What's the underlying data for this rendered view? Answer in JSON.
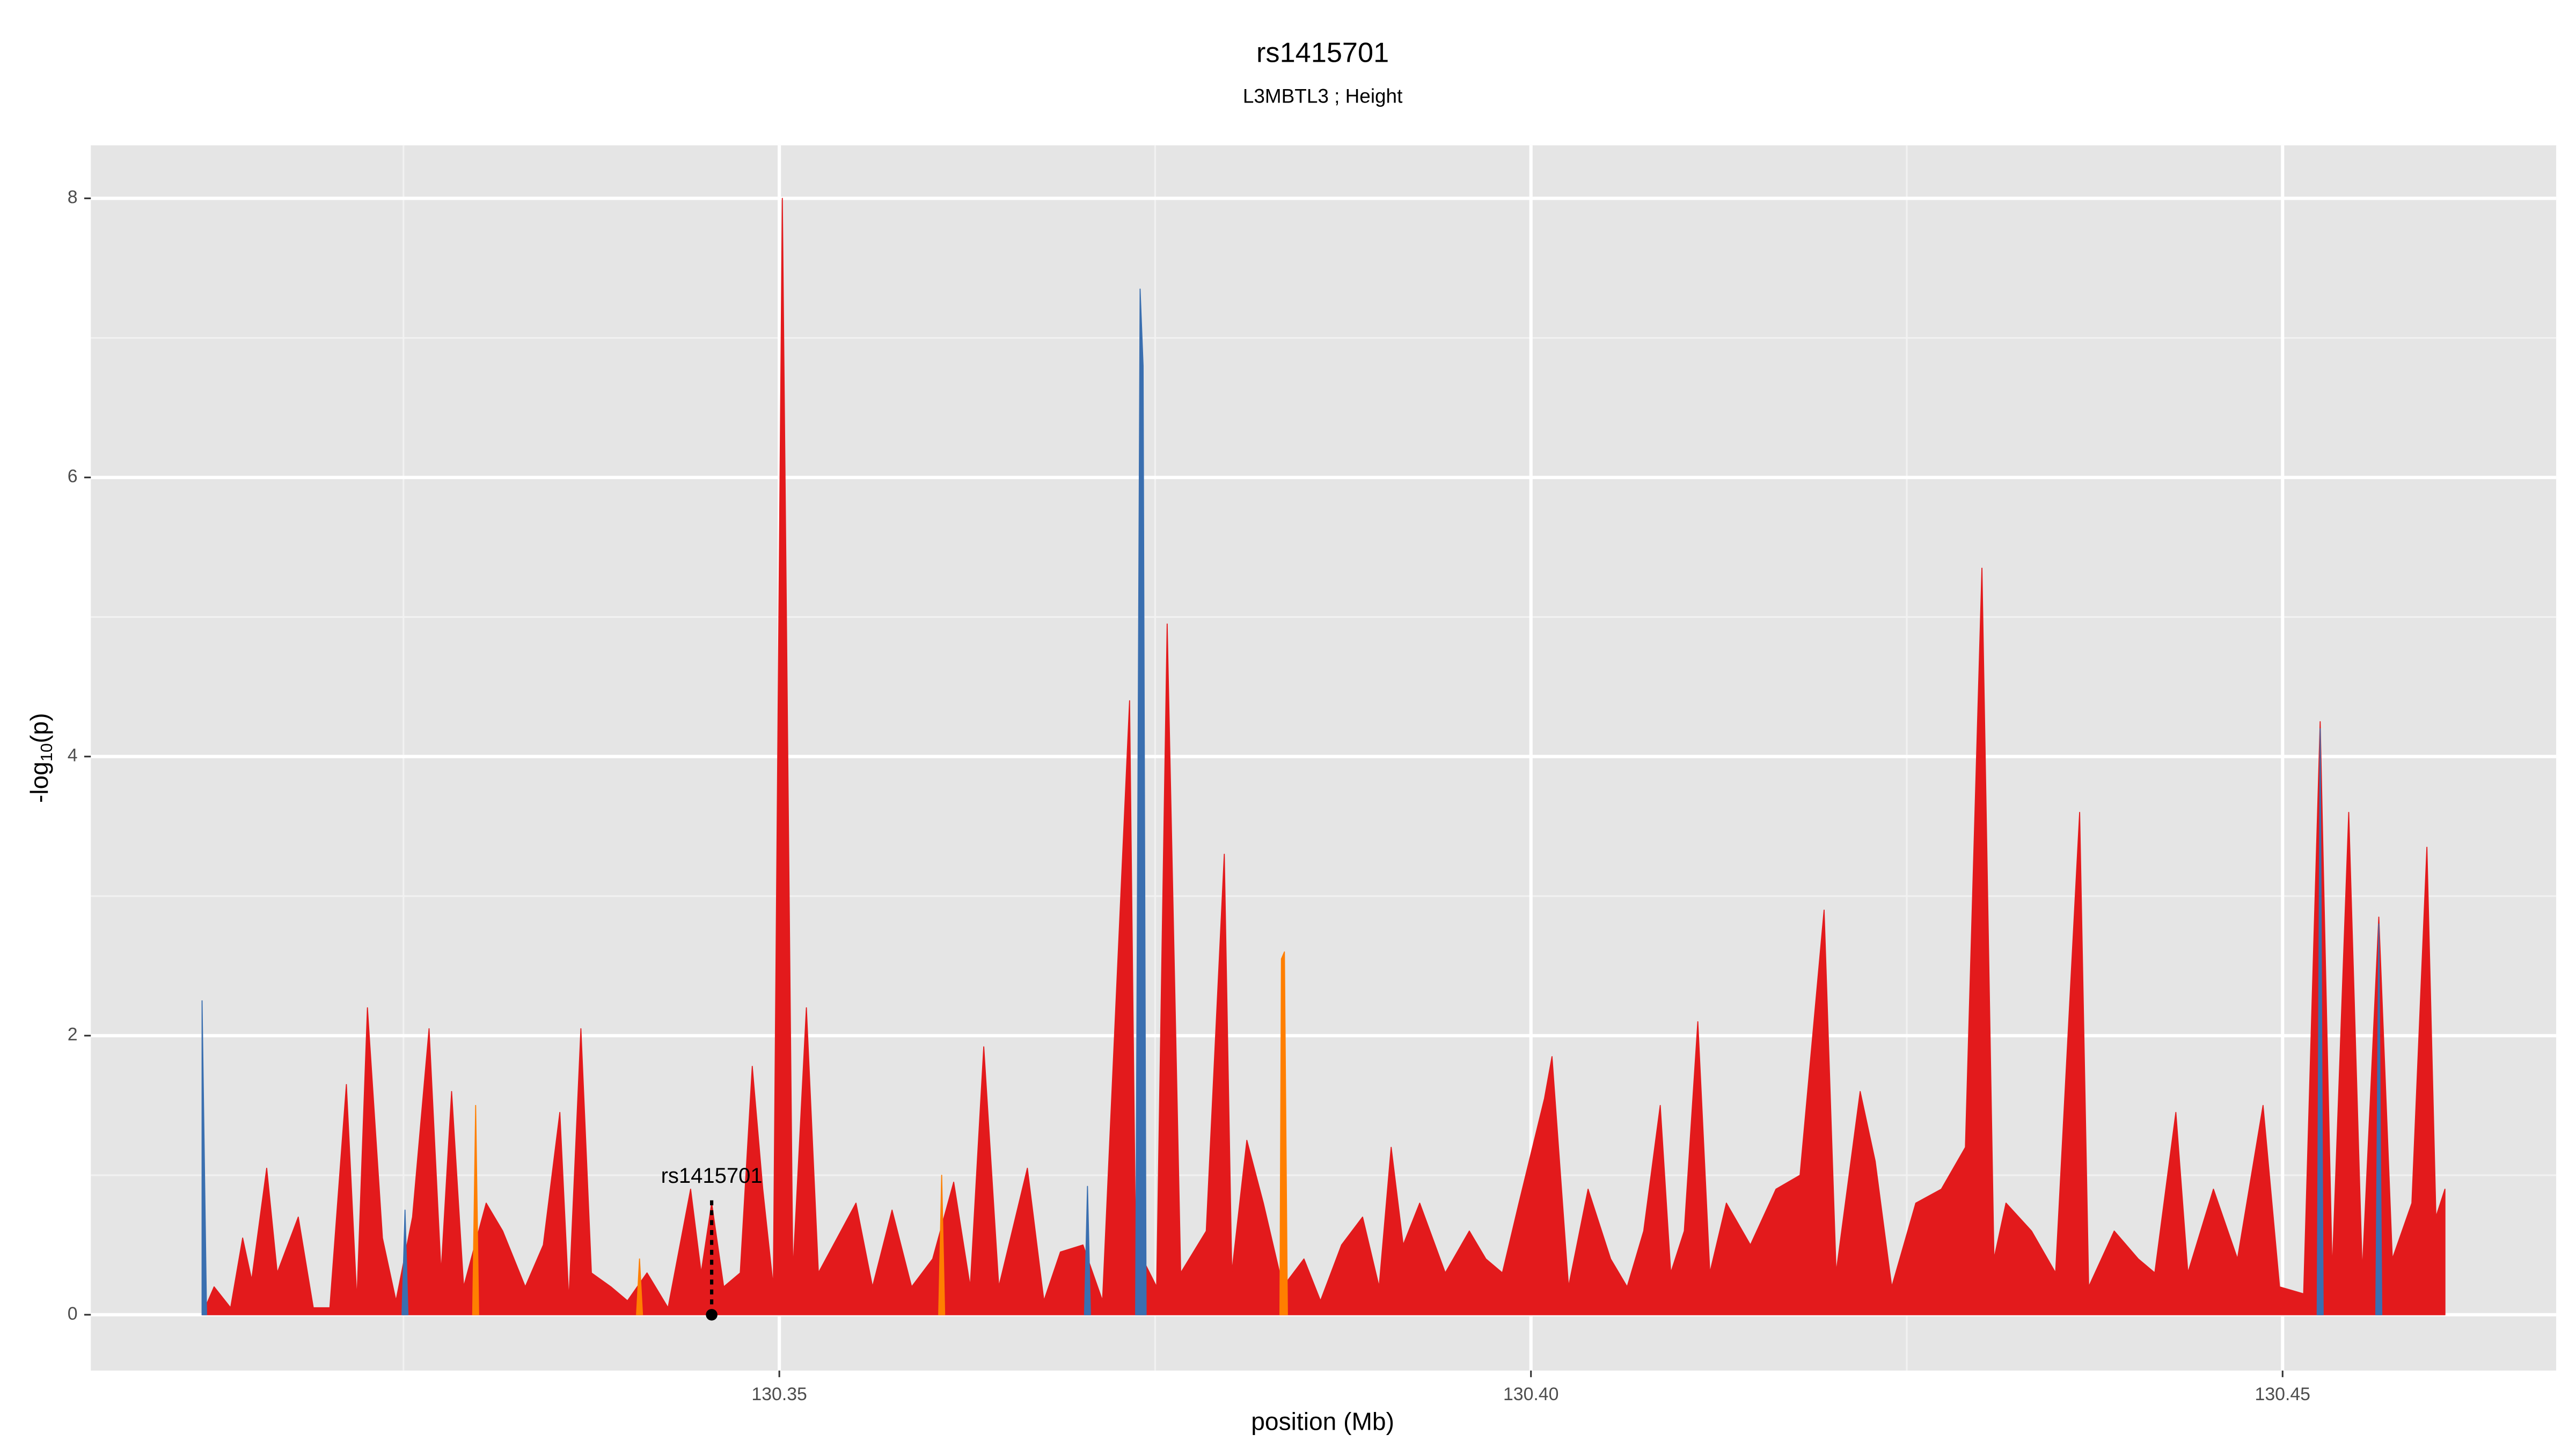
{
  "chart_data": {
    "type": "area",
    "title": "rs1415701",
    "subtitle": "L3MBTL3 ; Height",
    "x_label": "position (Mb)",
    "y_label": {
      "prefix": "-log",
      "subscript": "10",
      "suffix": "(p)"
    },
    "xlim": [
      130.3042,
      130.4682
    ],
    "ylim": [
      -0.4,
      8.38
    ],
    "xticks": [
      130.35,
      {
        "value": 130.4,
        "label": "130.40"
      },
      130.45
    ],
    "yticks": [
      0,
      2,
      4,
      6,
      8
    ],
    "x_minor_grid": [
      130.325,
      130.375,
      130.425
    ],
    "y_minor_grid": [
      1,
      3,
      5,
      7
    ],
    "grid": true,
    "background": "#e5e5e5",
    "series": [
      {
        "color": "#e31a1c",
        "x": [
          130.3116,
          130.3124,
          130.3135,
          130.3143,
          130.3149,
          130.3159,
          130.3166,
          130.318,
          130.319,
          130.3201,
          130.3212,
          130.3219,
          130.3226,
          130.3236,
          130.3245,
          130.3256,
          130.3267,
          130.3275,
          130.3282,
          130.329,
          130.3305,
          130.3316,
          130.3331,
          130.3343,
          130.3354,
          130.336,
          130.3368,
          130.3375,
          130.3388,
          130.3399,
          130.3412,
          130.3426,
          130.3441,
          130.3448,
          130.3455,
          130.3463,
          130.3474,
          130.3482,
          130.3489,
          130.3496,
          130.3502,
          130.3509,
          130.3518,
          130.3526,
          130.3536,
          130.3551,
          130.3562,
          130.3575,
          130.3588,
          130.3602,
          130.3616,
          130.3627,
          130.3636,
          130.3646,
          130.3665,
          130.3676,
          130.3687,
          130.3702,
          130.3715,
          130.3733,
          130.3737,
          130.3751,
          130.3758,
          130.3767,
          130.3784,
          130.3796,
          130.3801,
          130.3811,
          130.3822,
          130.3835,
          130.3849,
          130.386,
          130.3874,
          130.3888,
          130.3899,
          130.3907,
          130.3915,
          130.3926,
          130.3943,
          130.3959,
          130.397,
          130.3981,
          130.3992,
          130.4009,
          130.4014,
          130.4025,
          130.4038,
          130.4053,
          130.4064,
          130.4075,
          130.4086,
          130.4093,
          130.4102,
          130.4111,
          130.4119,
          130.413,
          130.4146,
          130.4163,
          130.4179,
          130.4195,
          130.4203,
          130.4219,
          130.4229,
          130.424,
          130.4256,
          130.4273,
          130.4289,
          130.43,
          130.4308,
          130.4316,
          130.4333,
          130.4349,
          130.4365,
          130.4371,
          130.4388,
          130.4404,
          130.4415,
          130.4429,
          130.4437,
          130.4454,
          130.447,
          130.4487,
          130.4498,
          130.4514,
          130.4525,
          130.4533,
          130.4544,
          130.4553,
          130.4564,
          130.4573,
          130.4586,
          130.4596,
          130.4602,
          130.4608
        ],
        "values": [
          0,
          0.2,
          0.05,
          0.55,
          0.25,
          1.05,
          0.3,
          0.7,
          0.05,
          0.05,
          1.65,
          0.1,
          2.2,
          0.55,
          0.1,
          0.7,
          2.05,
          0.3,
          1.6,
          0.2,
          0.8,
          0.6,
          0.2,
          0.5,
          1.45,
          0.1,
          2.05,
          0.3,
          0.2,
          0.1,
          0.3,
          0.05,
          0.9,
          0.3,
          0.8,
          0.2,
          0.3,
          1.78,
          0.9,
          0.2,
          8.0,
          0.3,
          2.2,
          0.3,
          0.5,
          0.8,
          0.2,
          0.75,
          0.2,
          0.4,
          0.95,
          0.2,
          1.92,
          0.2,
          1.05,
          0.1,
          0.45,
          0.5,
          0.1,
          4.4,
          0.5,
          0.2,
          4.95,
          0.3,
          0.6,
          3.3,
          0.3,
          1.25,
          0.8,
          0.2,
          0.4,
          0.1,
          0.5,
          0.7,
          0.2,
          1.2,
          0.5,
          0.8,
          0.3,
          0.6,
          0.4,
          0.3,
          0.8,
          1.55,
          1.85,
          0.2,
          0.9,
          0.4,
          0.2,
          0.6,
          1.5,
          0.3,
          0.6,
          2.1,
          0.3,
          0.8,
          0.5,
          0.9,
          1.0,
          2.9,
          0.3,
          1.6,
          1.1,
          0.2,
          0.8,
          0.9,
          1.2,
          5.35,
          0.4,
          0.8,
          0.6,
          0.3,
          3.6,
          0.2,
          0.6,
          0.4,
          0.3,
          1.45,
          0.3,
          0.9,
          0.4,
          1.5,
          0.2,
          0.15,
          4.25,
          0.3,
          3.6,
          0.3,
          2.85,
          0.4,
          0.8,
          3.35,
          0.7,
          0.9
        ]
      },
      {
        "color": "#ff7f00",
        "x": [
          130.3296,
          130.3298,
          130.33,
          130.335,
          130.3405,
          130.3407,
          130.3409,
          130.35,
          130.3606,
          130.3608,
          130.361,
          130.372,
          130.3833,
          130.3834,
          130.3836,
          130.3838
        ],
        "values": [
          0,
          1.5,
          0,
          null,
          0,
          0.4,
          0,
          null,
          0,
          1.0,
          0,
          null,
          0,
          2.55,
          2.6,
          0
        ]
      },
      {
        "color": "#3a6fb0",
        "x": [
          130.3116,
          130.3119,
          130.318,
          130.3249,
          130.3251,
          130.3253,
          130.35,
          130.3703,
          130.3705,
          130.3707,
          130.372,
          130.3737,
          130.374,
          130.3742,
          130.3744,
          130.41,
          130.4523,
          130.4525,
          130.4527,
          130.454,
          130.4562,
          130.4564,
          130.4566
        ],
        "values": [
          2.25,
          0,
          null,
          0,
          0.75,
          0,
          null,
          0,
          0.92,
          0,
          null,
          0,
          7.35,
          6.8,
          0,
          null,
          0,
          4.2,
          0,
          null,
          0,
          2.8,
          0
        ]
      }
    ],
    "annotation": {
      "text": "rs1415701",
      "x": 130.3455,
      "y": 0.82,
      "point_y": 0
    }
  }
}
